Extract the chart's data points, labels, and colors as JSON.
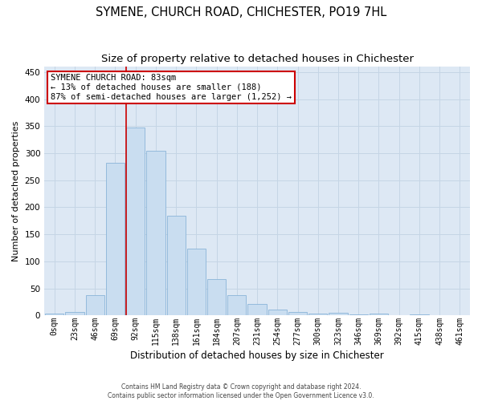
{
  "title": "SYMENE, CHURCH ROAD, CHICHESTER, PO19 7HL",
  "subtitle": "Size of property relative to detached houses in Chichester",
  "xlabel": "Distribution of detached houses by size in Chichester",
  "ylabel": "Number of detached properties",
  "bar_categories": [
    "0sqm",
    "23sqm",
    "46sqm",
    "69sqm",
    "92sqm",
    "115sqm",
    "138sqm",
    "161sqm",
    "184sqm",
    "207sqm",
    "231sqm",
    "254sqm",
    "277sqm",
    "300sqm",
    "323sqm",
    "346sqm",
    "369sqm",
    "392sqm",
    "415sqm",
    "438sqm",
    "461sqm"
  ],
  "bar_values": [
    3,
    6,
    37,
    282,
    348,
    304,
    185,
    124,
    67,
    38,
    22,
    11,
    7,
    4,
    5,
    2,
    4,
    1,
    2,
    1,
    1
  ],
  "bar_color": "#c9ddf0",
  "bar_edge_color": "#8ab4d8",
  "marker_line_color": "#cc0000",
  "annotation_text": "SYMENE CHURCH ROAD: 83sqm\n← 13% of detached houses are smaller (188)\n87% of semi-detached houses are larger (1,252) →",
  "annotation_box_color": "#ffffff",
  "annotation_box_edge_color": "#cc0000",
  "ylim": [
    0,
    460
  ],
  "yticks": [
    0,
    50,
    100,
    150,
    200,
    250,
    300,
    350,
    400,
    450
  ],
  "grid_color": "#c5d5e5",
  "background_color": "#dde8f4",
  "footer_line1": "Contains HM Land Registry data © Crown copyright and database right 2024.",
  "footer_line2": "Contains public sector information licensed under the Open Government Licence v3.0.",
  "title_fontsize": 10.5,
  "subtitle_fontsize": 9.5,
  "xlabel_fontsize": 8.5,
  "ylabel_fontsize": 8,
  "tick_fontsize": 7,
  "annot_fontsize": 7.5
}
